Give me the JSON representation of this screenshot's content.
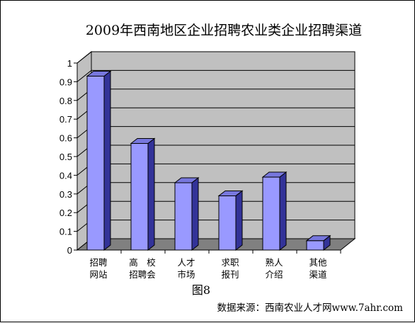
{
  "chart_data": {
    "type": "bar",
    "title": "2009年西南地区企业招聘农业类企业招聘渠道",
    "categories": [
      [
        "招聘",
        "网站"
      ],
      [
        "高　校",
        "招聘会"
      ],
      [
        "人才",
        "市场"
      ],
      [
        "求职",
        "报刊"
      ],
      [
        "熟人",
        "介绍"
      ],
      [
        "其他",
        "渠道"
      ]
    ],
    "values": [
      0.93,
      0.57,
      0.36,
      0.29,
      0.39,
      0.05
    ],
    "ylim": [
      0,
      1
    ],
    "yticks": [
      "0",
      "0.1",
      "0.2",
      "0.3",
      "0.4",
      "0.5",
      "0.6",
      "0.7",
      "0.8",
      "0.9",
      "1"
    ],
    "grid": true,
    "legend": "none",
    "style": "3d-column"
  },
  "caption": "图8",
  "source": "数据来源：西南农业人才网www.7ahr.com",
  "colors": {
    "bar_front": "#9999ff",
    "bar_side": "#333399",
    "bar_top": "#7777dd",
    "plot_wall": "#c0c0c0",
    "floor": "#808080",
    "gridline": "#000000"
  }
}
